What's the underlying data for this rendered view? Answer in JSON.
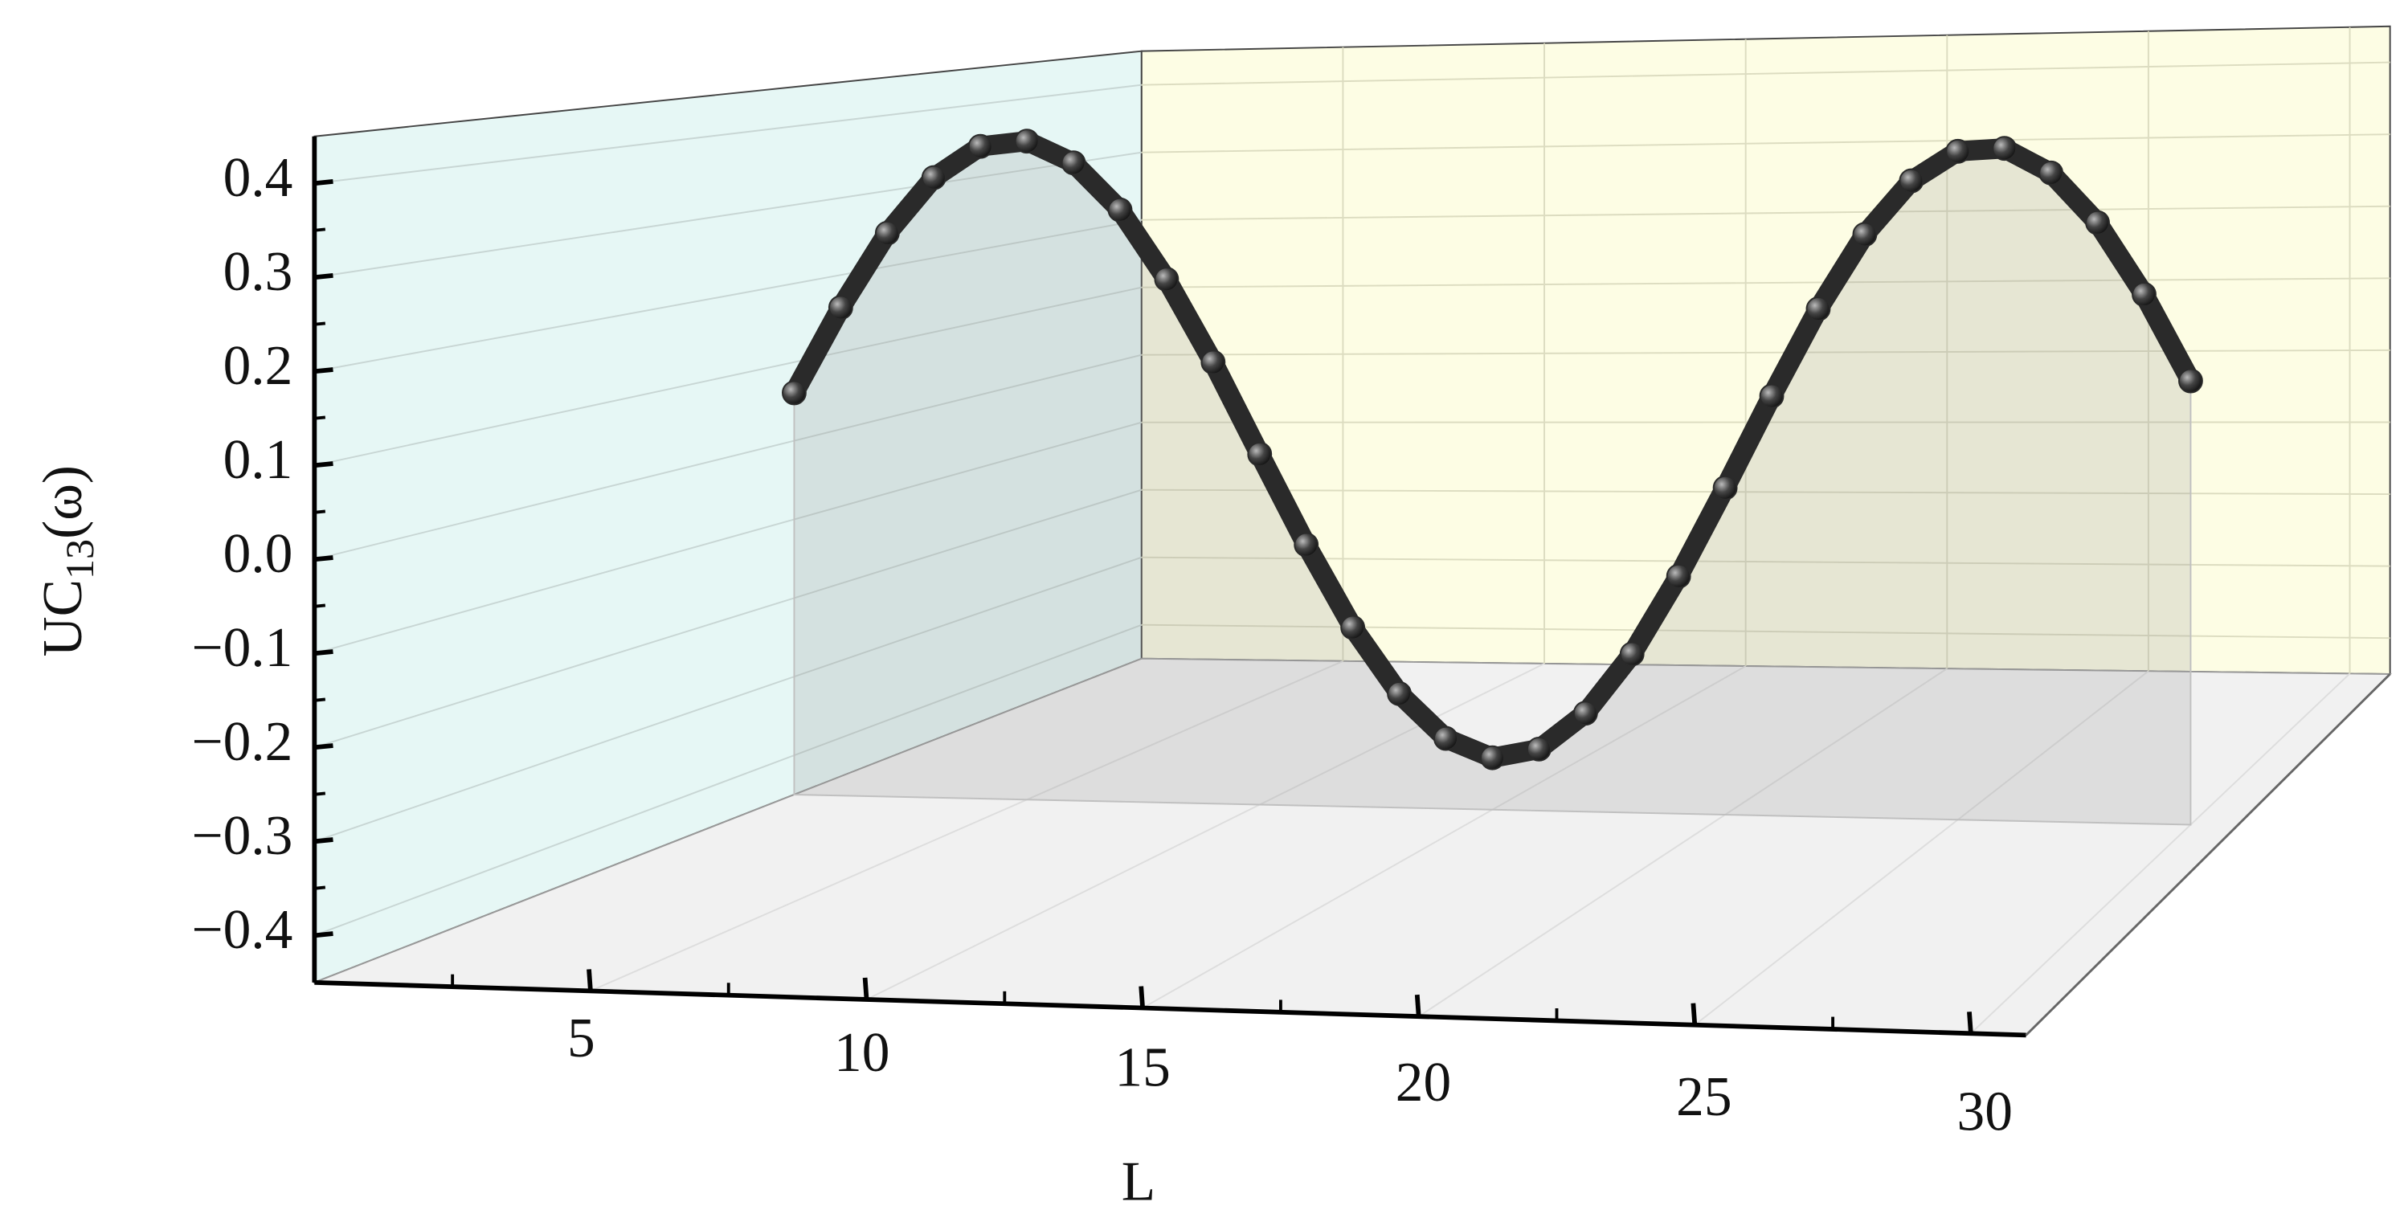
{
  "chart_data": {
    "type": "line",
    "xlabel": "L",
    "ylabel": {
      "main": "UC",
      "sub": "13",
      "tail": "(ω)"
    },
    "x": [
      0,
      1,
      2,
      3,
      4,
      5,
      6,
      7,
      8,
      9,
      10,
      11,
      12,
      13,
      14,
      15,
      16,
      17,
      18,
      19,
      20,
      21,
      22,
      23,
      24,
      25,
      26,
      27,
      28,
      29,
      30
    ],
    "values": [
      0.061,
      0.17,
      0.265,
      0.336,
      0.376,
      0.383,
      0.356,
      0.297,
      0.21,
      0.106,
      -0.009,
      -0.122,
      -0.225,
      -0.307,
      -0.362,
      -0.385,
      -0.373,
      -0.327,
      -0.252,
      -0.154,
      -0.043,
      0.072,
      0.181,
      0.274,
      0.341,
      0.378,
      0.382,
      0.352,
      0.291,
      0.203,
      0.097
    ],
    "color": "#2a2a2a",
    "xlim": [
      0,
      31
    ],
    "ylim": [
      -0.45,
      0.45
    ],
    "xticks": [
      5,
      10,
      15,
      20,
      25,
      30
    ],
    "yticks": [
      {
        "value": -0.4,
        "label": "−0.4"
      },
      {
        "value": -0.3,
        "label": "−0.3"
      },
      {
        "value": -0.2,
        "label": "−0.2"
      },
      {
        "value": -0.1,
        "label": "−0.1"
      },
      {
        "value": 0,
        "label": "0.0"
      },
      0.1,
      0.2,
      0.3,
      0.4
    ],
    "grid": true
  }
}
